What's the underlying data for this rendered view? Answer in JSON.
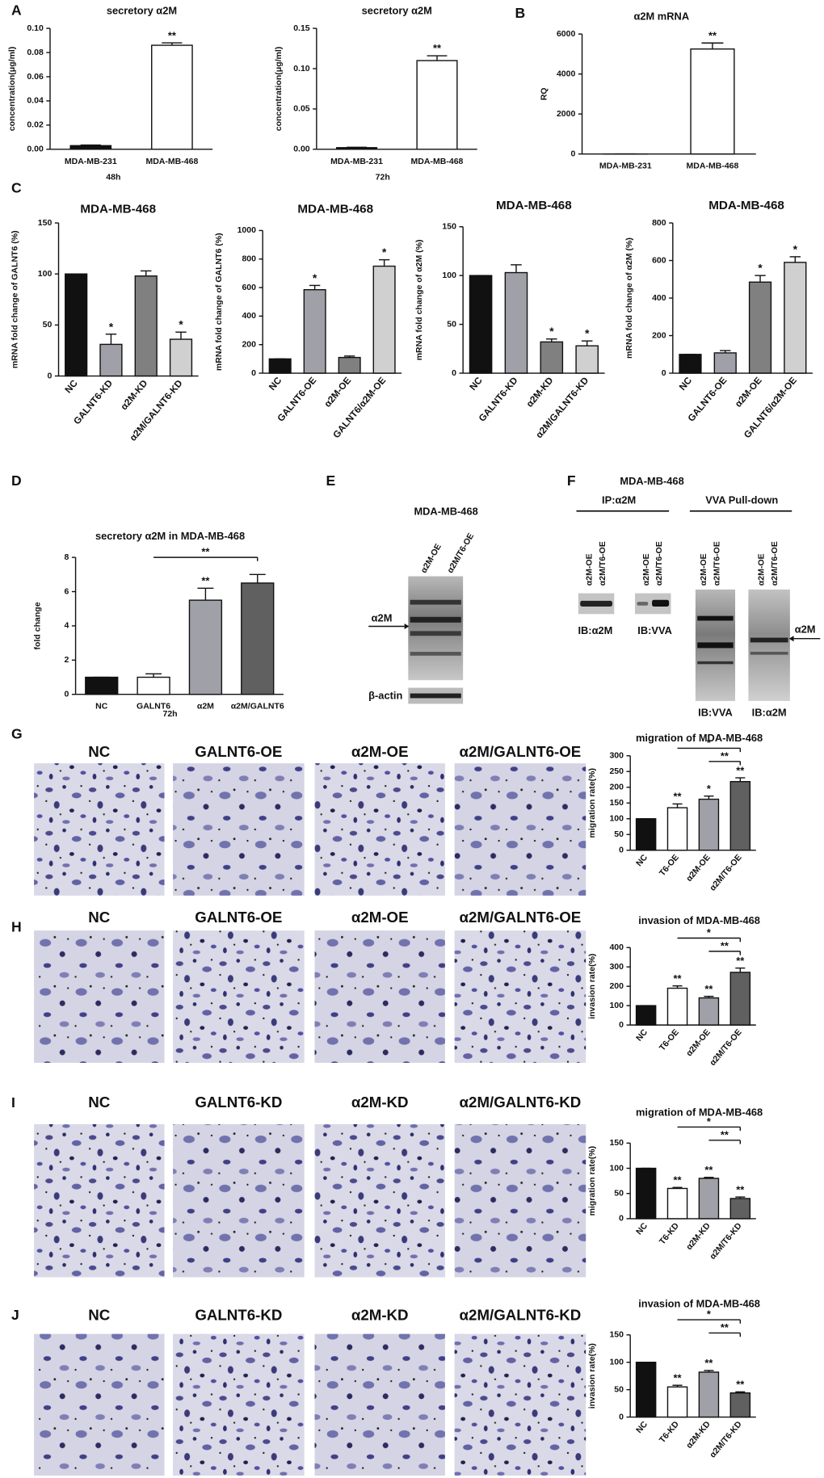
{
  "panel_labels": [
    "A",
    "B",
    "C",
    "D",
    "E",
    "F",
    "G",
    "H",
    "I",
    "J"
  ],
  "chart_data": [
    {
      "type": "bar",
      "title": "secretory α2M",
      "y_label": "concentration(μg/ml)",
      "x_label": "48h",
      "categories": [
        "MDA-MB-231",
        "MDA-MB-468"
      ],
      "values": [
        0.003,
        0.086
      ],
      "errors": [
        0.0005,
        0.002
      ],
      "colors": [
        "#111111",
        "#ffffff"
      ],
      "significance": [
        null,
        "**"
      ],
      "ylim": [
        0,
        0.1
      ],
      "yticks": [
        {
          "value": 0,
          "label": "0.00"
        },
        0.02,
        0.04,
        0.06,
        0.08,
        {
          "value": 0.1,
          "label": "0.10"
        }
      ]
    },
    {
      "type": "bar",
      "title": "secretory α2M",
      "y_label": "concentration(μg/ml)",
      "x_label": "72h",
      "categories": [
        "MDA-MB-231",
        "MDA-MB-468"
      ],
      "values": [
        0.002,
        0.11
      ],
      "errors": [
        0.0005,
        0.006
      ],
      "colors": [
        "#111111",
        "#ffffff"
      ],
      "significance": [
        null,
        "**"
      ],
      "ylim": [
        0,
        0.15
      ],
      "yticks": [
        {
          "value": 0,
          "label": "0.00"
        },
        0.05,
        {
          "value": 0.1,
          "label": "0.10"
        },
        0.15
      ]
    },
    {
      "type": "bar",
      "title": "α2M mRNA",
      "y_label": "RQ",
      "categories": [
        "MDA-MB-231",
        "MDA-MB-468"
      ],
      "values": [
        1,
        5250
      ],
      "errors": [
        0,
        300
      ],
      "colors": [
        "#111111",
        "#ffffff"
      ],
      "significance": [
        null,
        "**"
      ],
      "ylim": [
        0,
        6000
      ],
      "yticks": [
        0,
        2000,
        4000,
        6000
      ]
    },
    {
      "type": "bar",
      "title": "MDA-MB-468",
      "y_label": "mRNA fold change of GALNT6 (%)",
      "categories": [
        "NC",
        "GALNT6-KD",
        "α2M-KD",
        "α2M/GALNT6-KD"
      ],
      "values": [
        100,
        31,
        98,
        36
      ],
      "errors": [
        0,
        10,
        5,
        7
      ],
      "colors": [
        "#111111",
        "#a0a0a8",
        "#808080",
        "#d0d0d0"
      ],
      "significance": [
        null,
        "*",
        null,
        "*"
      ],
      "ylim": [
        0,
        150
      ],
      "yticks": [
        0,
        50,
        100,
        150
      ]
    },
    {
      "type": "bar",
      "title": "MDA-MB-468",
      "y_label": "mRNA fold change of GALNT6 (%)",
      "categories": [
        "NC",
        "GALNT6-OE",
        "α2M-OE",
        "GALNT6/α2M-OE"
      ],
      "values": [
        100,
        585,
        110,
        750
      ],
      "errors": [
        0,
        30,
        10,
        45
      ],
      "colors": [
        "#111111",
        "#a0a0a8",
        "#808080",
        "#d0d0d0"
      ],
      "significance": [
        null,
        "*",
        null,
        "*"
      ],
      "ylim": [
        0,
        1000
      ],
      "yticks": [
        0,
        200,
        400,
        600,
        800,
        1000
      ]
    },
    {
      "type": "bar",
      "title": "MDA-MB-468",
      "y_label": "mRNA fold change of α2M (%)",
      "categories": [
        "NC",
        "GALNT6-KD",
        "α2M-KD",
        "α2M/GALNT6-KD"
      ],
      "values": [
        100,
        103,
        32,
        28
      ],
      "errors": [
        0,
        8,
        3,
        5
      ],
      "colors": [
        "#111111",
        "#a0a0a8",
        "#808080",
        "#d0d0d0"
      ],
      "significance": [
        null,
        null,
        "*",
        "*"
      ],
      "ylim": [
        0,
        150
      ],
      "yticks": [
        0,
        50,
        100,
        150
      ]
    },
    {
      "type": "bar",
      "title": "MDA-MB-468",
      "y_label": "mRNA fold change of α2M (%)",
      "categories": [
        "NC",
        "GALNT6-OE",
        "α2M-OE",
        "GALNT6/α2M-OE"
      ],
      "values": [
        100,
        108,
        485,
        590
      ],
      "errors": [
        0,
        12,
        35,
        30
      ],
      "colors": [
        "#111111",
        "#a0a0a8",
        "#808080",
        "#d0d0d0"
      ],
      "significance": [
        null,
        null,
        "*",
        "*"
      ],
      "ylim": [
        0,
        800
      ],
      "yticks": [
        0,
        200,
        400,
        600,
        800
      ]
    },
    {
      "type": "bar",
      "title": "secretory α2M  in MDA-MB-468",
      "y_label": "fold change",
      "x_label": "72h",
      "categories": [
        "NC",
        "GALNT6",
        "α2M",
        "α2M/GALNT6"
      ],
      "values": [
        1,
        1,
        5.5,
        6.5
      ],
      "errors": [
        0,
        0.2,
        0.7,
        0.5
      ],
      "colors": [
        "#111111",
        "#ffffff",
        "#a0a0a8",
        "#606060"
      ],
      "significance": [
        null,
        null,
        "**",
        null
      ],
      "brackets": [
        {
          "from": 1,
          "to": 3,
          "label": "**"
        }
      ],
      "ylim": [
        0,
        8
      ],
      "yticks": [
        0,
        2,
        4,
        6,
        8
      ]
    },
    {
      "type": "bar",
      "title": "migration of MDA-MB-468",
      "y_label": "migration rate(%)",
      "categories": [
        "NC",
        "T6-OE",
        "α2M-OE",
        "α2M/T6-OE"
      ],
      "values": [
        100,
        135,
        162,
        218
      ],
      "errors": [
        0,
        12,
        10,
        12
      ],
      "colors": [
        "#111111",
        "#ffffff",
        "#a0a0a8",
        "#606060"
      ],
      "significance": [
        null,
        "**",
        "*",
        "**"
      ],
      "brackets": [
        {
          "from": 1,
          "to": 3,
          "label": "*"
        },
        {
          "from": 2,
          "to": 3,
          "label": "**"
        }
      ],
      "ylim": [
        0,
        300
      ],
      "yticks": [
        0,
        50,
        100,
        150,
        200,
        250,
        300
      ]
    },
    {
      "type": "bar",
      "title": "invasion of MDA-MB-468",
      "y_label": "invasion rate(%)",
      "categories": [
        "NC",
        "T6-OE",
        "α2M-OE",
        "α2M/T6-OE"
      ],
      "values": [
        100,
        190,
        140,
        272
      ],
      "errors": [
        0,
        12,
        8,
        22
      ],
      "colors": [
        "#111111",
        "#ffffff",
        "#a0a0a8",
        "#606060"
      ],
      "significance": [
        null,
        "**",
        "**",
        "**"
      ],
      "brackets": [
        {
          "from": 1,
          "to": 3,
          "label": "*"
        },
        {
          "from": 2,
          "to": 3,
          "label": "**"
        }
      ],
      "ylim": [
        0,
        400
      ],
      "yticks": [
        0,
        100,
        200,
        300,
        400
      ]
    },
    {
      "type": "bar",
      "title": "migration of MDA-MB-468",
      "y_label": "migration rate(%)",
      "categories": [
        "NC",
        "T6-KD",
        "α2M-KD",
        "α2M/T6-KD"
      ],
      "values": [
        100,
        60,
        80,
        40
      ],
      "errors": [
        0,
        2,
        2,
        3
      ],
      "colors": [
        "#111111",
        "#ffffff",
        "#a0a0a8",
        "#606060"
      ],
      "significance": [
        null,
        "**",
        "**",
        "**"
      ],
      "brackets": [
        {
          "from": 1,
          "to": 3,
          "label": "*"
        },
        {
          "from": 2,
          "to": 3,
          "label": "**"
        }
      ],
      "ylim": [
        0,
        150
      ],
      "yticks": [
        0,
        50,
        100,
        150
      ]
    },
    {
      "type": "bar",
      "title": "invasion of MDA-MB-468",
      "y_label": "invasion rate(%)",
      "categories": [
        "NC",
        "T6-KD",
        "α2M-KD",
        "α2M/T6-KD"
      ],
      "values": [
        100,
        55,
        82,
        44
      ],
      "errors": [
        0,
        3,
        3,
        2
      ],
      "colors": [
        "#111111",
        "#ffffff",
        "#a0a0a8",
        "#606060"
      ],
      "significance": [
        null,
        "**",
        "**",
        "**"
      ],
      "brackets": [
        {
          "from": 1,
          "to": 3,
          "label": "*"
        },
        {
          "from": 2,
          "to": 3,
          "label": "**"
        }
      ],
      "ylim": [
        0,
        150
      ],
      "yticks": [
        0,
        50,
        100,
        150
      ]
    }
  ],
  "blot_e": {
    "title": "MDA-MB-468",
    "lanes": [
      "α2M-OE",
      "α2M/T6-OE"
    ],
    "band": "α2M",
    "loading": "β-actin"
  },
  "blot_f": {
    "title": "MDA-MB-468",
    "groups": [
      "IP:α2M",
      "VVA Pull-down"
    ],
    "lanes": [
      "α2M-OE",
      "α2M/T6-OE"
    ],
    "blots": [
      "IB:α2M",
      "IB:VVA",
      "IB:VVA",
      "IB:α2M"
    ],
    "band": "α2M"
  },
  "micrographs": [
    {
      "labels": [
        "NC",
        "GALNT6-OE",
        "α2M-OE",
        "α2M/GALNT6-OE"
      ]
    },
    {
      "labels": [
        "NC",
        "GALNT6-OE",
        "α2M-OE",
        "α2M/GALNT6-OE"
      ]
    },
    {
      "labels": [
        "NC",
        "GALNT6-KD",
        "α2M-KD",
        "α2M/GALNT6-KD"
      ]
    },
    {
      "labels": [
        "NC",
        "GALNT6-KD",
        "α2M-KD",
        "α2M/GALNT6-KD"
      ]
    }
  ]
}
